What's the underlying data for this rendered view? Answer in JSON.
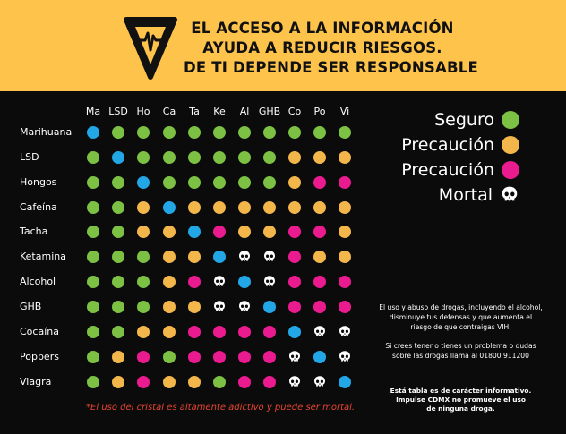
{
  "header": {
    "lines": [
      "EL ACCESO A LA INFORMACIÓN",
      "AYUDA A REDUCIR RIESGOS.",
      "DE TI DEPENDE SER RESPONSABLE"
    ],
    "logo_icon": "heartbeat-triangle-icon"
  },
  "columns": [
    "Ma",
    "LSD",
    "Ho",
    "Ca",
    "Ta",
    "Ke",
    "Al",
    "GHB",
    "Co",
    "Po",
    "Vi"
  ],
  "rows": [
    {
      "label": "Marihuana",
      "cells": [
        "b",
        "g",
        "g",
        "g",
        "g",
        "g",
        "g",
        "g",
        "g",
        "g",
        "g"
      ]
    },
    {
      "label": "LSD",
      "cells": [
        "g",
        "b",
        "g",
        "g",
        "g",
        "g",
        "g",
        "g",
        "o",
        "o",
        "o"
      ]
    },
    {
      "label": "Hongos",
      "cells": [
        "g",
        "g",
        "b",
        "g",
        "g",
        "g",
        "g",
        "g",
        "o",
        "p",
        "p"
      ]
    },
    {
      "label": "Cafeína",
      "cells": [
        "g",
        "g",
        "o",
        "b",
        "o",
        "o",
        "o",
        "o",
        "o",
        "o",
        "o"
      ]
    },
    {
      "label": "Tacha",
      "cells": [
        "g",
        "g",
        "o",
        "o",
        "b",
        "p",
        "o",
        "o",
        "p",
        "p",
        "o"
      ]
    },
    {
      "label": "Ketamina",
      "cells": [
        "g",
        "g",
        "g",
        "o",
        "o",
        "b",
        "s",
        "s",
        "p",
        "o",
        "o"
      ]
    },
    {
      "label": "Alcohol",
      "cells": [
        "g",
        "g",
        "g",
        "o",
        "p",
        "s",
        "b",
        "s",
        "p",
        "p",
        "p"
      ]
    },
    {
      "label": "GHB",
      "cells": [
        "g",
        "g",
        "g",
        "o",
        "o",
        "s",
        "s",
        "b",
        "p",
        "p",
        "p"
      ]
    },
    {
      "label": "Cocaína",
      "cells": [
        "g",
        "g",
        "o",
        "o",
        "p",
        "p",
        "p",
        "p",
        "b",
        "s",
        "s"
      ]
    },
    {
      "label": "Poppers",
      "cells": [
        "g",
        "o",
        "p",
        "g",
        "p",
        "p",
        "p",
        "p",
        "s",
        "b",
        "s"
      ]
    },
    {
      "label": "Viagra",
      "cells": [
        "g",
        "o",
        "p",
        "o",
        "o",
        "g",
        "p",
        "p",
        "s",
        "s",
        "b"
      ]
    }
  ],
  "colors": {
    "g": "#7cc144",
    "o": "#f3b64a",
    "p": "#ea1a8f",
    "b": "#23a6e6",
    "header_bg": "#fdc34b",
    "warning_text": "#e74632"
  },
  "legend": [
    {
      "label": "Seguro",
      "color": "#7cc144",
      "icon": "circle"
    },
    {
      "label": "Precaución",
      "color": "#f3b64a",
      "icon": "circle"
    },
    {
      "label": "Precaución",
      "color": "#ea1a8f",
      "icon": "circle"
    },
    {
      "label": "Mortal",
      "color": "#ffffff",
      "icon": "skull-icon"
    }
  ],
  "note": "*El uso del cristal es altamente adictivo y puede ser mortal.",
  "info": {
    "p1": [
      "El uso y abuso de drogas, incluyendo el alcohol,",
      "disminuye tus defensas y que aumenta el",
      "riesgo de que contraigas VIH."
    ],
    "p2": [
      "Si crees tener o tienes un problema o dudas",
      "sobre las drogas llama al 01800 911200"
    ],
    "p3": [
      "Está tabla es de carácter informativo.",
      "Impulse CDMX no promueve el uso",
      "de ninguna droga."
    ]
  }
}
